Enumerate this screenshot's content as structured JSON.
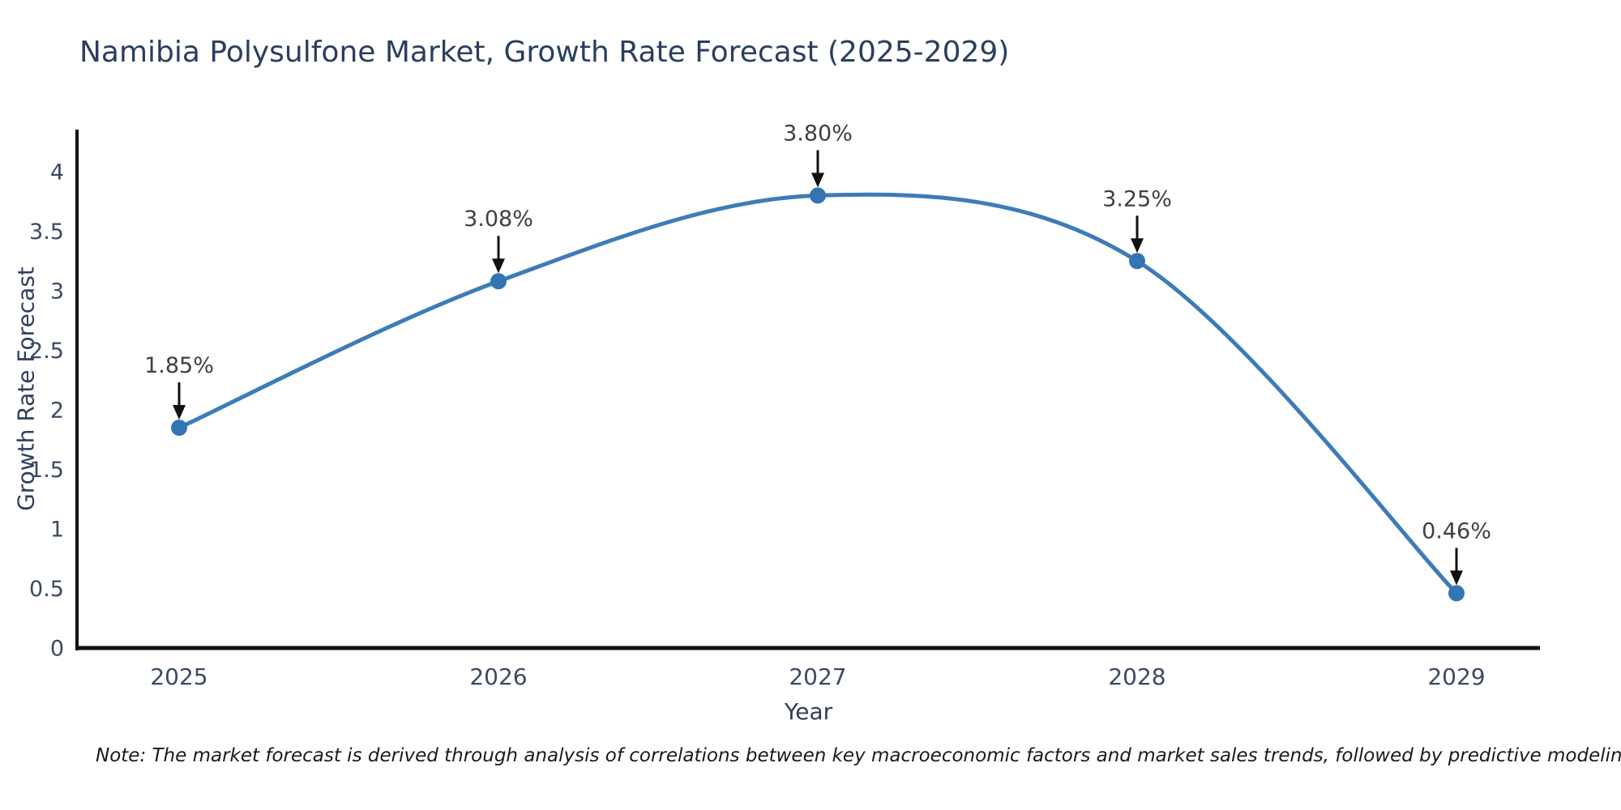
{
  "title": "Namibia Polysulfone Market, Growth Rate Forecast (2025-2029)",
  "note": "Note: The market forecast is derived through analysis of correlations between key macroeconomic factors and market sales trends, followed by predictive modeling to project future sales",
  "chart_data": {
    "type": "line",
    "title": "Namibia Polysulfone Market, Growth Rate Forecast (2025-2029)",
    "categories": [
      "2025",
      "2026",
      "2027",
      "2028",
      "2029"
    ],
    "values": [
      1.85,
      3.08,
      3.8,
      3.25,
      0.46
    ],
    "data_labels": [
      "1.85%",
      "3.08%",
      "3.80%",
      "3.25%",
      "0.46%"
    ],
    "xlabel": "Year",
    "ylabel": "Growth Rate Forecast",
    "ylim": [
      0,
      4
    ],
    "yticks": [
      "0",
      "0.5",
      "1",
      "1.5",
      "2",
      "2.5",
      "3",
      "3.5",
      "4"
    ],
    "grid": false,
    "legend_position": "none",
    "line_style": "smooth-spline",
    "line_color": "#3d7cb8",
    "marker_color": "#3375b2",
    "axis_color": "#111111",
    "text_color": "#3b4a63",
    "annotation_text_color": "#404040",
    "annotation_arrow_color": "#111111"
  }
}
